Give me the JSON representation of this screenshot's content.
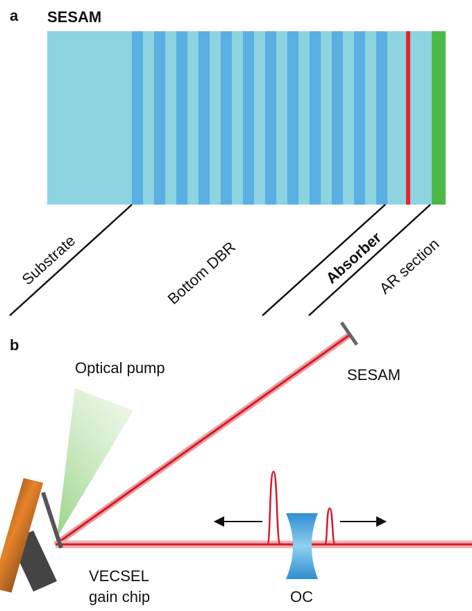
{
  "panel_a": {
    "label": "a",
    "title": "SESAM",
    "layers": [
      "Substrate",
      "Bottom DBR",
      "Absorber",
      "AR section"
    ]
  },
  "panel_b": {
    "label": "b",
    "pump": "Optical pump",
    "sesam": "SESAM",
    "chip": [
      "VECSEL",
      "gain chip"
    ],
    "oc": "OC"
  }
}
